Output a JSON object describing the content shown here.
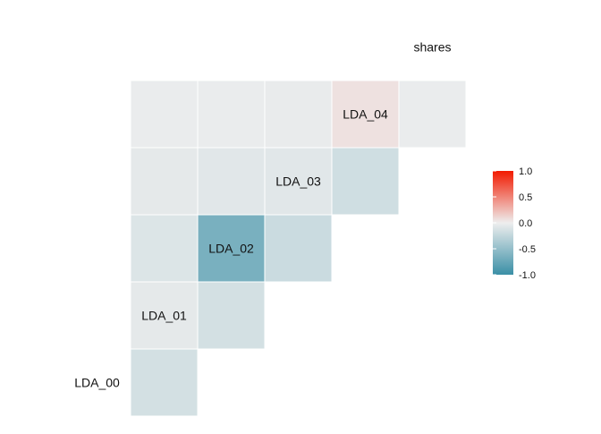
{
  "chart_data": {
    "type": "heatmap",
    "title": "",
    "xlabel": "",
    "ylabel": "",
    "variables": [
      "LDA_00",
      "LDA_01",
      "LDA_02",
      "LDA_03",
      "LDA_04",
      "shares"
    ],
    "cells": [
      {
        "row": "LDA_01",
        "col": "LDA_00",
        "value": -0.15
      },
      {
        "row": "LDA_02",
        "col": "LDA_00",
        "value": -0.05
      },
      {
        "row": "LDA_03",
        "col": "LDA_00",
        "value": -0.1
      },
      {
        "row": "LDA_04",
        "col": "LDA_00",
        "value": -0.05
      },
      {
        "row": "shares",
        "col": "LDA_00",
        "value": -0.02
      },
      {
        "row": "LDA_02",
        "col": "LDA_01",
        "value": -0.15
      },
      {
        "row": "LDA_03",
        "col": "LDA_01",
        "value": -0.65
      },
      {
        "row": "LDA_04",
        "col": "LDA_01",
        "value": -0.07
      },
      {
        "row": "shares",
        "col": "LDA_01",
        "value": -0.02
      },
      {
        "row": "LDA_03",
        "col": "LDA_02",
        "value": -0.2
      },
      {
        "row": "LDA_04",
        "col": "LDA_02",
        "value": -0.07
      },
      {
        "row": "shares",
        "col": "LDA_02",
        "value": -0.03
      },
      {
        "row": "LDA_04",
        "col": "LDA_03",
        "value": -0.17
      },
      {
        "row": "shares",
        "col": "LDA_03",
        "value": 0.06
      },
      {
        "row": "shares",
        "col": "LDA_04",
        "value": -0.02
      }
    ],
    "legend": {
      "placement": "right",
      "range": [
        -1,
        1
      ],
      "ticks": [
        "1.0",
        "0.5",
        "0.0",
        "-0.5",
        "-1.0"
      ],
      "low_color": "#3A8FA6",
      "mid_color": "#EEEEEE",
      "high_color": "#F21A00"
    },
    "grid": false
  }
}
